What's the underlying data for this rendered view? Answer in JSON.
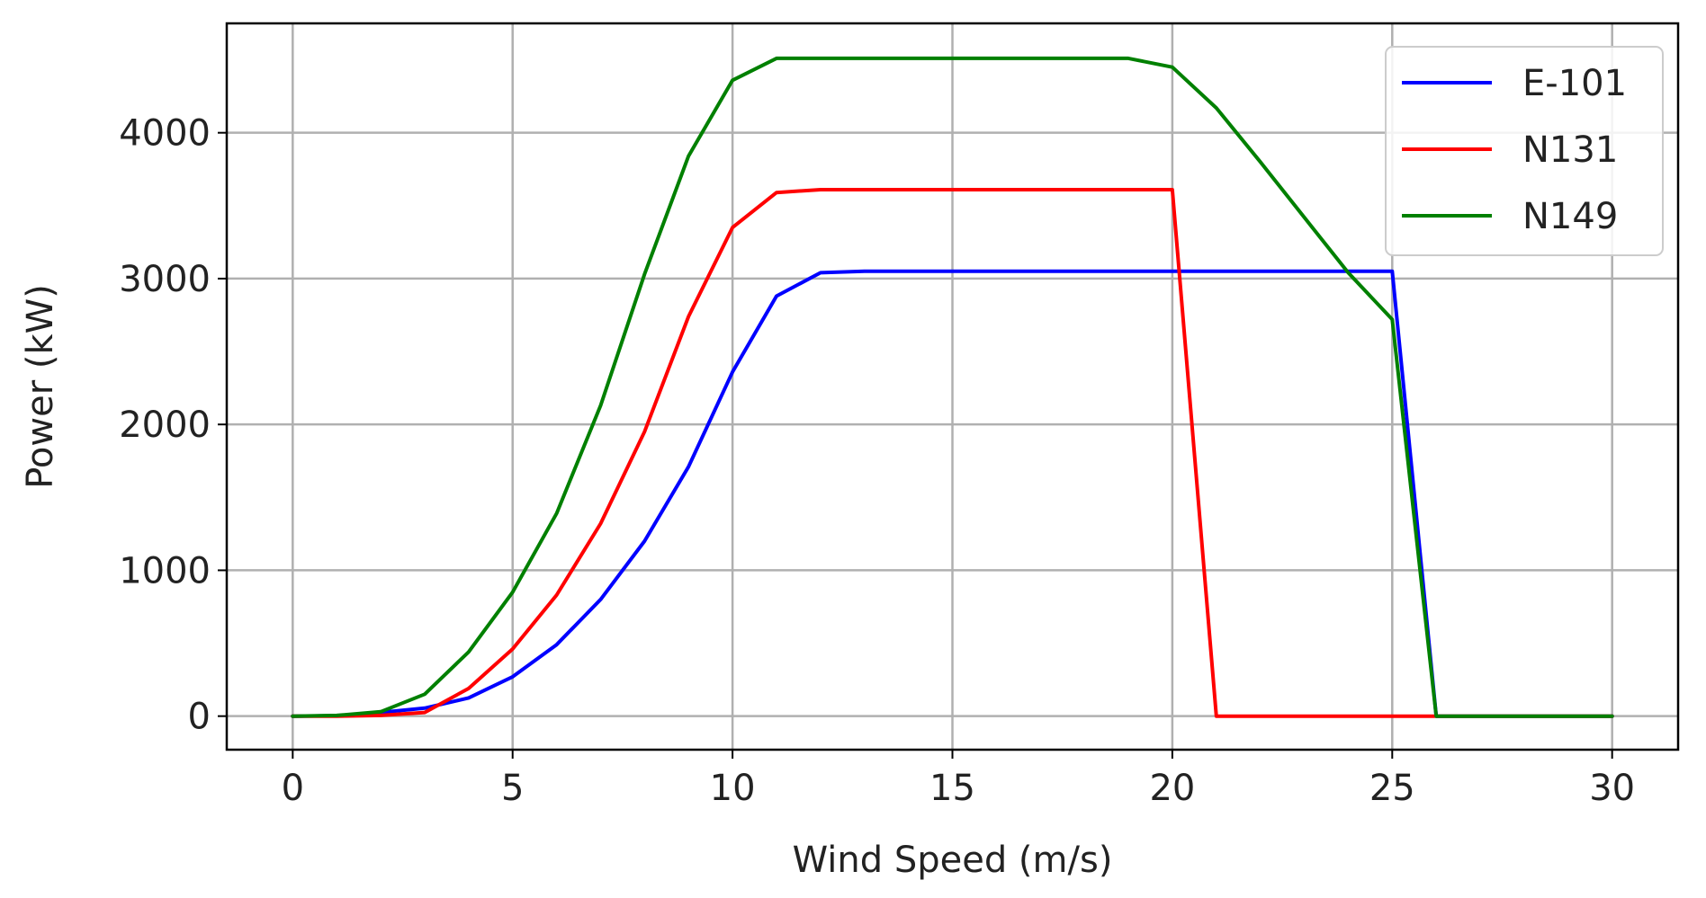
{
  "chart_data": {
    "type": "line",
    "xlabel": "Wind Speed (m/s)",
    "ylabel": "Power (kW)",
    "xlim": [
      -1.5,
      31.5
    ],
    "ylim": [
      -230,
      4750
    ],
    "xticks": [
      0,
      5,
      10,
      15,
      20,
      25,
      30
    ],
    "yticks": [
      0,
      1000,
      2000,
      3000,
      4000
    ],
    "grid": true,
    "legend_position": "top-right",
    "x": [
      0,
      1,
      2,
      3,
      4,
      5,
      6,
      7,
      8,
      9,
      10,
      11,
      12,
      13,
      14,
      15,
      16,
      17,
      18,
      19,
      20,
      21,
      22,
      23,
      24,
      25,
      26,
      27,
      28,
      29,
      30
    ],
    "series": [
      {
        "name": "E-101",
        "color": "#0000ff",
        "values": [
          0,
          3,
          25,
          55,
          125,
          270,
          490,
          800,
          1200,
          1710,
          2360,
          2880,
          3040,
          3050,
          3050,
          3050,
          3050,
          3050,
          3050,
          3050,
          3050,
          3050,
          3050,
          3050,
          3050,
          3050,
          0,
          0,
          0,
          0,
          0
        ]
      },
      {
        "name": "N131",
        "color": "#ff0000",
        "values": [
          0,
          0,
          5,
          25,
          190,
          460,
          830,
          1320,
          1950,
          2740,
          3350,
          3590,
          3610,
          3610,
          3610,
          3610,
          3610,
          3610,
          3610,
          3610,
          3610,
          0,
          0,
          0,
          0,
          0,
          0,
          0,
          0,
          0,
          0
        ]
      },
      {
        "name": "N149",
        "color": "#008000",
        "values": [
          0,
          5,
          30,
          150,
          440,
          850,
          1390,
          2130,
          3030,
          3840,
          4360,
          4510,
          4510,
          4510,
          4510,
          4510,
          4510,
          4510,
          4510,
          4510,
          4450,
          4170,
          3800,
          3420,
          3040,
          2720,
          0,
          0,
          0,
          0,
          0
        ]
      }
    ]
  }
}
